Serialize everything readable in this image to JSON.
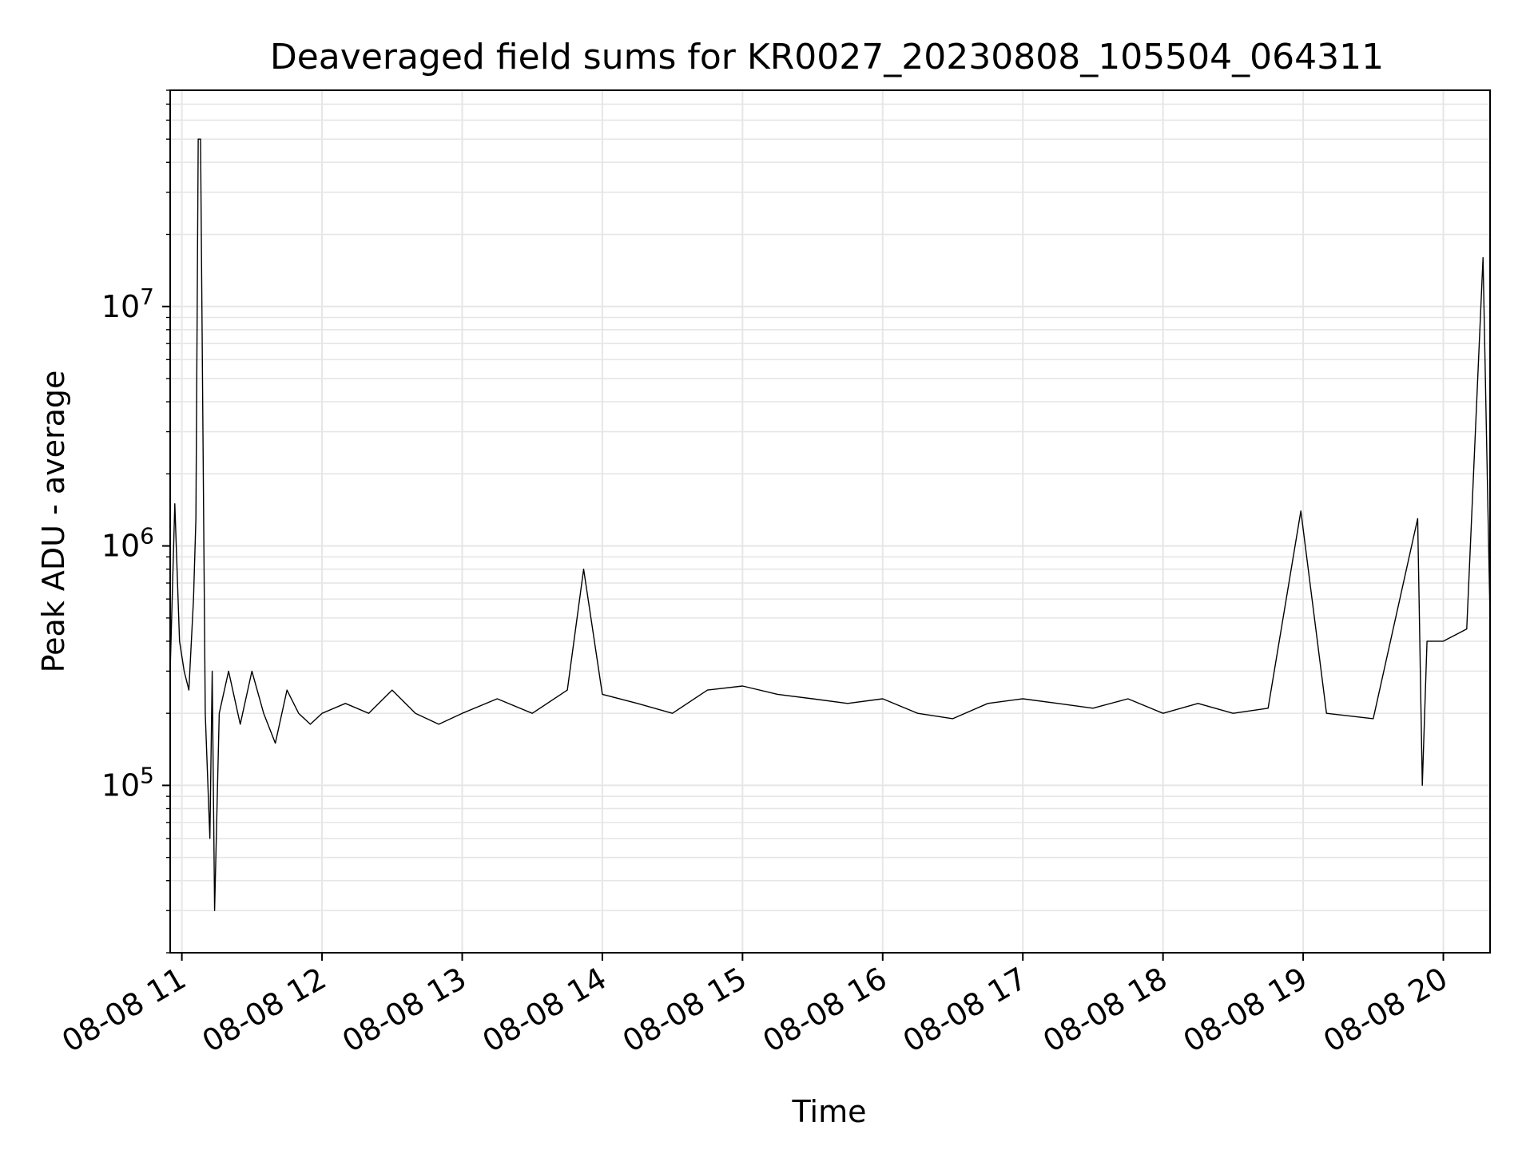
{
  "chart_data": {
    "type": "line",
    "title": "Deaveraged field sums for KR0027_20230808_105504_064311",
    "xlabel": "Time",
    "ylabel": "Peak ADU - average",
    "y_scale": "log",
    "ylim": [
      20000,
      80000000
    ],
    "xlim": [
      "2023-08-08 10:55",
      "2023-08-08 20:20"
    ],
    "grid": true,
    "x_ticks": [
      "08-08 11",
      "08-08 12",
      "08-08 13",
      "08-08 14",
      "08-08 15",
      "08-08 16",
      "08-08 17",
      "08-08 18",
      "08-08 19",
      "08-08 20"
    ],
    "y_ticks": [
      {
        "base": "10",
        "exp": "5",
        "value": 100000
      },
      {
        "base": "10",
        "exp": "6",
        "value": 1000000
      },
      {
        "base": "10",
        "exp": "7",
        "value": 10000000
      }
    ],
    "line_color": "#000000",
    "series": [
      {
        "x": [
          "2023-08-08 10:55",
          "2023-08-08 10:57",
          "2023-08-08 10:59",
          "2023-08-08 11:01",
          "2023-08-08 11:03",
          "2023-08-08 11:05",
          "2023-08-08 11:06",
          "2023-08-08 11:07",
          "2023-08-08 11:08",
          "2023-08-08 11:10",
          "2023-08-08 11:12",
          "2023-08-08 11:13",
          "2023-08-08 11:14",
          "2023-08-08 11:16",
          "2023-08-08 11:20",
          "2023-08-08 11:25",
          "2023-08-08 11:30",
          "2023-08-08 11:35",
          "2023-08-08 11:40",
          "2023-08-08 11:45",
          "2023-08-08 11:50",
          "2023-08-08 11:55",
          "2023-08-08 12:00",
          "2023-08-08 12:10",
          "2023-08-08 12:20",
          "2023-08-08 12:30",
          "2023-08-08 12:40",
          "2023-08-08 12:50",
          "2023-08-08 13:00",
          "2023-08-08 13:15",
          "2023-08-08 13:30",
          "2023-08-08 13:45",
          "2023-08-08 13:52",
          "2023-08-08 14:00",
          "2023-08-08 14:15",
          "2023-08-08 14:30",
          "2023-08-08 14:45",
          "2023-08-08 15:00",
          "2023-08-08 15:15",
          "2023-08-08 15:30",
          "2023-08-08 15:45",
          "2023-08-08 16:00",
          "2023-08-08 16:15",
          "2023-08-08 16:30",
          "2023-08-08 16:45",
          "2023-08-08 17:00",
          "2023-08-08 17:15",
          "2023-08-08 17:30",
          "2023-08-08 17:45",
          "2023-08-08 18:00",
          "2023-08-08 18:15",
          "2023-08-08 18:30",
          "2023-08-08 18:45",
          "2023-08-08 18:59",
          "2023-08-08 19:10",
          "2023-08-08 19:30",
          "2023-08-08 19:49",
          "2023-08-08 19:51",
          "2023-08-08 19:53",
          "2023-08-08 20:00",
          "2023-08-08 20:10",
          "2023-08-08 20:17",
          "2023-08-08 20:20"
        ],
        "y": [
          300000,
          1500000,
          400000,
          300000,
          250000,
          600000,
          1300000,
          50000000,
          50000000,
          200000,
          60000,
          300000,
          30000,
          200000,
          300000,
          180000,
          300000,
          200000,
          150000,
          250000,
          200000,
          180000,
          200000,
          220000,
          200000,
          250000,
          200000,
          180000,
          200000,
          230000,
          200000,
          250000,
          800000,
          240000,
          220000,
          200000,
          250000,
          260000,
          240000,
          230000,
          220000,
          230000,
          200000,
          190000,
          220000,
          230000,
          220000,
          210000,
          230000,
          200000,
          220000,
          200000,
          210000,
          1400000,
          200000,
          190000,
          1300000,
          100000,
          400000,
          400000,
          450000,
          16000000,
          500000
        ]
      }
    ]
  }
}
